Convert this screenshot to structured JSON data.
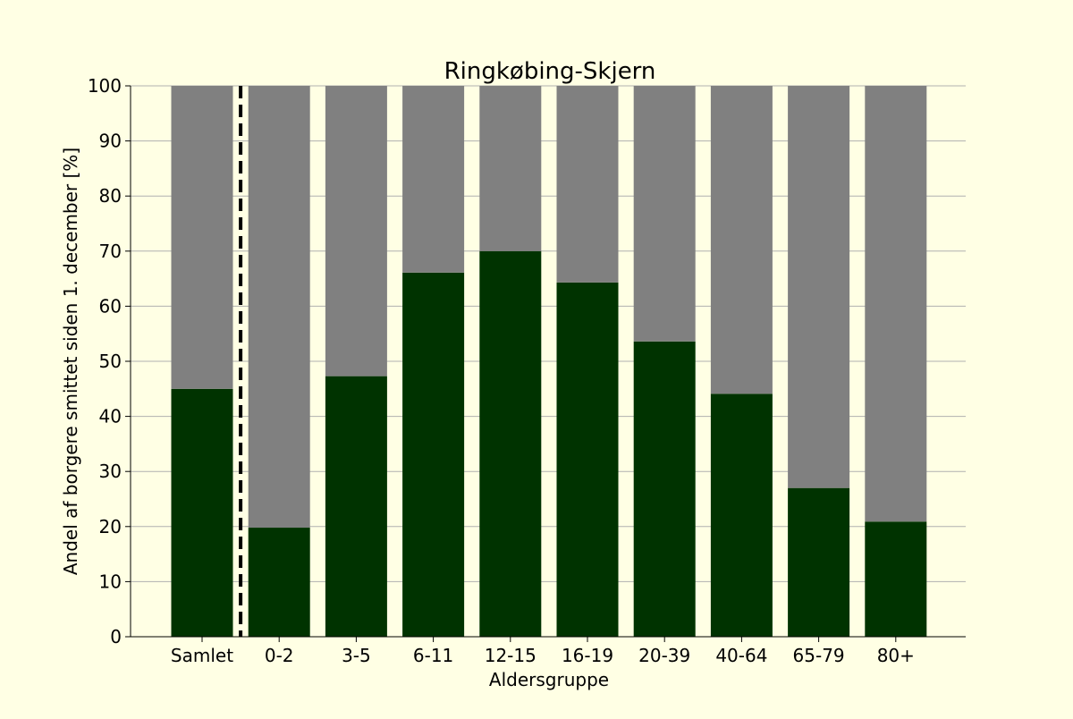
{
  "chart_data": {
    "type": "bar",
    "stacked": true,
    "title": "Ringkøbing-Skjern",
    "xlabel": "Aldersgruppe",
    "ylabel": "Andel af borgere smittet siden 1. december [%]",
    "categories": [
      "Samlet",
      "0-2",
      "3-5",
      "6-11",
      "12-15",
      "16-19",
      "20-39",
      "40-64",
      "65-79",
      "80+"
    ],
    "series": [
      {
        "values": [
          45.0,
          19.8,
          47.3,
          66.1,
          70.0,
          64.3,
          53.6,
          44.1,
          27.0,
          20.9
        ],
        "color": "#003300"
      },
      {
        "values": [
          55.0,
          80.2,
          52.7,
          33.9,
          30.0,
          35.7,
          46.4,
          55.9,
          73.0,
          79.1
        ],
        "color": "#808080"
      }
    ],
    "ylim": [
      0,
      100
    ],
    "yticks": [
      0,
      10,
      20,
      30,
      40,
      50,
      60,
      70,
      80,
      90,
      100
    ],
    "grid": "horizontal",
    "separator_after_category": "Samlet",
    "background_color": "#ffffe4"
  }
}
